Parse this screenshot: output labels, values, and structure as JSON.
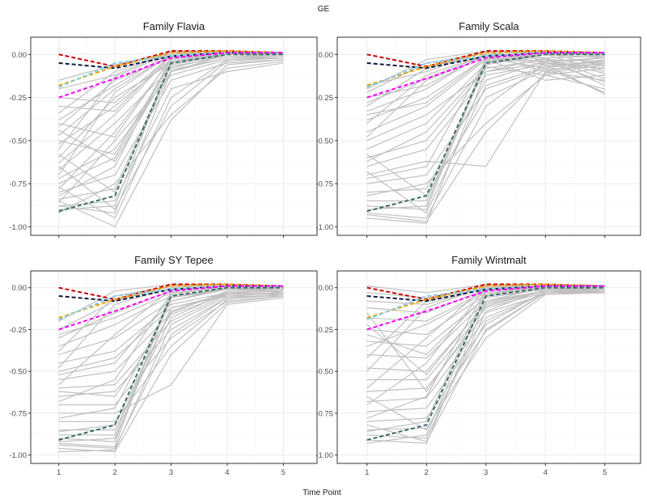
{
  "title": "GE",
  "xlabel": "Time Point",
  "chart_data": {
    "type": "line",
    "title": "GE",
    "xlabel": "Time Point",
    "ylabel": "",
    "x": [
      1,
      2,
      3,
      4,
      5
    ],
    "xlim": [
      0.5,
      5.6
    ],
    "ylim": [
      -1.05,
      0.1
    ],
    "y_ticks": [
      0.0,
      -0.25,
      -0.5,
      -0.75,
      -1.0
    ],
    "y_tick_labels": [
      "0.00",
      "-0.25",
      "-0.50",
      "-0.75",
      "-1.00"
    ],
    "x_ticks": [
      1,
      2,
      3,
      4,
      5
    ],
    "x_tick_labels": [
      "1",
      "2",
      "3",
      "4",
      "5"
    ],
    "grid": true,
    "background_color": "#c0c0c0",
    "dashed_series": [
      {
        "color": "#cc0000",
        "values": [
          0.0,
          -0.07,
          0.02,
          0.02,
          0.01
        ]
      },
      {
        "color": "#0d1b3e",
        "values": [
          -0.05,
          -0.08,
          -0.01,
          0.01,
          0.01
        ]
      },
      {
        "color": "#f0a000",
        "values": [
          -0.18,
          -0.07,
          0.01,
          0.02,
          0.01
        ]
      },
      {
        "color": "#87ceeb",
        "values": [
          -0.19,
          -0.05,
          -0.01,
          0.01,
          0.01
        ]
      },
      {
        "color": "#ff00ff",
        "values": [
          -0.25,
          -0.14,
          -0.02,
          0.01,
          0.01
        ]
      },
      {
        "color": "#3d6b6b",
        "values": [
          -0.91,
          -0.82,
          -0.05,
          0.0,
          0.0
        ]
      }
    ],
    "panels": [
      {
        "title": "Family Flavia",
        "background": [
          [
            -0.38,
            -0.18,
            0.01,
            0.01,
            0.0
          ],
          [
            -0.42,
            -0.15,
            -0.02,
            0.0,
            0.0
          ],
          [
            -0.47,
            -0.2,
            0.0,
            0.02,
            0.01
          ],
          [
            -0.52,
            -0.3,
            -0.03,
            0.01,
            0.0
          ],
          [
            -0.55,
            -0.13,
            0.01,
            0.01,
            0.01
          ],
          [
            -0.6,
            -0.25,
            -0.05,
            0.0,
            0.0
          ],
          [
            -0.63,
            -0.35,
            -0.01,
            0.01,
            0.0
          ],
          [
            -0.67,
            -0.4,
            -0.08,
            0.0,
            -0.01
          ],
          [
            -0.7,
            -0.22,
            0.0,
            0.02,
            0.01
          ],
          [
            -0.72,
            -0.55,
            -0.1,
            -0.02,
            -0.02
          ],
          [
            -0.75,
            -0.6,
            -0.05,
            0.0,
            0.0
          ],
          [
            -0.78,
            -0.45,
            -0.03,
            0.01,
            0.0
          ],
          [
            -0.8,
            -0.7,
            -0.15,
            -0.05,
            -0.03
          ],
          [
            -0.82,
            -0.65,
            -0.02,
            0.01,
            0.01
          ],
          [
            -0.84,
            -0.78,
            -0.06,
            0.0,
            0.0
          ],
          [
            -0.86,
            -0.5,
            -0.12,
            -0.03,
            -0.02
          ],
          [
            -0.88,
            -0.85,
            -0.2,
            -0.1,
            -0.05
          ],
          [
            -0.9,
            -0.88,
            -0.04,
            0.01,
            0.0
          ],
          [
            -0.92,
            -0.75,
            -0.35,
            -0.08,
            -0.04
          ],
          [
            -0.85,
            -1.0,
            -0.38,
            -0.06,
            -0.03
          ],
          [
            -0.2,
            -0.12,
            0.02,
            0.02,
            0.01
          ],
          [
            -0.25,
            -0.28,
            -0.01,
            0.01,
            0.01
          ],
          [
            -0.3,
            -0.33,
            0.0,
            0.01,
            0.0
          ],
          [
            -0.34,
            -0.1,
            0.01,
            0.02,
            0.01
          ],
          [
            -0.44,
            -0.62,
            -0.07,
            -0.01,
            -0.01
          ],
          [
            -0.58,
            -0.8,
            -0.09,
            -0.02,
            -0.01
          ],
          [
            -0.65,
            -0.9,
            -0.3,
            -0.04,
            -0.02
          ],
          [
            -0.77,
            -0.95,
            -0.25,
            -0.03,
            -0.02
          ],
          [
            -0.88,
            -0.92,
            -0.1,
            0.0,
            0.0
          ],
          [
            -0.5,
            -0.58,
            -0.04,
            0.0,
            0.0
          ],
          [
            -0.4,
            -0.48,
            -0.02,
            0.01,
            0.0
          ],
          [
            -0.15,
            -0.06,
            0.01,
            0.02,
            0.01
          ]
        ]
      },
      {
        "title": "Family Scala",
        "background": [
          [
            -0.18,
            -0.1,
            0.02,
            0.02,
            0.01
          ],
          [
            -0.22,
            -0.05,
            0.01,
            -0.05,
            -0.08
          ],
          [
            -0.28,
            -0.14,
            0.0,
            -0.1,
            -0.15
          ],
          [
            -0.33,
            -0.2,
            0.01,
            -0.02,
            -0.18
          ],
          [
            -0.38,
            -0.25,
            -0.02,
            -0.08,
            -0.22
          ],
          [
            -0.45,
            -0.3,
            -0.03,
            -0.15,
            -0.12
          ],
          [
            -0.5,
            -0.35,
            -0.1,
            -0.05,
            -0.05
          ],
          [
            -0.55,
            -0.4,
            -0.05,
            0.0,
            -0.02
          ],
          [
            -0.6,
            -0.5,
            -0.08,
            -0.03,
            -0.04
          ],
          [
            -0.65,
            -0.55,
            -0.12,
            -0.06,
            -0.06
          ],
          [
            -0.7,
            -0.62,
            -0.65,
            -0.1,
            -0.05
          ],
          [
            -0.75,
            -0.7,
            -0.2,
            -0.08,
            -0.03
          ],
          [
            -0.8,
            -0.78,
            -0.15,
            -0.04,
            -0.02
          ],
          [
            -0.85,
            -0.85,
            -0.06,
            0.0,
            0.0
          ],
          [
            -0.88,
            -0.9,
            -0.04,
            0.01,
            0.0
          ],
          [
            -0.92,
            -0.95,
            -0.3,
            -0.05,
            -0.02
          ],
          [
            -0.95,
            -0.98,
            -0.1,
            -0.02,
            -0.01
          ],
          [
            -0.9,
            -0.88,
            -0.02,
            0.01,
            0.01
          ],
          [
            -0.82,
            -0.75,
            -0.4,
            -0.12,
            -0.08
          ],
          [
            -0.72,
            -0.65,
            -0.03,
            0.0,
            -0.1
          ],
          [
            -0.62,
            -0.45,
            -0.07,
            -0.12,
            -0.2
          ],
          [
            -0.48,
            -0.15,
            -0.01,
            -0.06,
            -0.23
          ],
          [
            -0.4,
            -0.12,
            0.0,
            -0.02,
            -0.14
          ],
          [
            -0.3,
            -0.08,
            0.01,
            0.01,
            -0.07
          ],
          [
            -0.25,
            -0.18,
            0.0,
            -0.03,
            -0.11
          ],
          [
            -0.58,
            -0.82,
            -0.25,
            -0.09,
            -0.05
          ],
          [
            -0.68,
            -0.92,
            -0.18,
            -0.07,
            -0.04
          ],
          [
            -0.93,
            -0.97,
            -0.45,
            -0.11,
            -0.06
          ],
          [
            -0.35,
            -0.28,
            -0.02,
            -0.04,
            -0.16
          ],
          [
            -0.2,
            -0.03,
            0.02,
            0.01,
            -0.01
          ]
        ]
      },
      {
        "title": "Family SY Tepee",
        "background": [
          [
            -0.2,
            -0.02,
            0.02,
            0.02,
            0.01
          ],
          [
            -0.25,
            -0.08,
            0.01,
            0.02,
            0.01
          ],
          [
            -0.3,
            -0.15,
            -0.02,
            0.01,
            0.0
          ],
          [
            -0.35,
            -0.22,
            -0.05,
            -0.01,
            -0.02
          ],
          [
            -0.4,
            -0.3,
            -0.08,
            0.0,
            -0.03
          ],
          [
            -0.45,
            -0.38,
            -0.1,
            -0.03,
            -0.04
          ],
          [
            -0.5,
            -0.42,
            -0.12,
            -0.05,
            -0.05
          ],
          [
            -0.55,
            -0.5,
            -0.15,
            -0.02,
            -0.02
          ],
          [
            -0.6,
            -0.58,
            -0.2,
            -0.04,
            -0.03
          ],
          [
            -0.65,
            -0.62,
            -0.25,
            -0.06,
            -0.04
          ],
          [
            -0.7,
            -0.7,
            -0.3,
            -0.08,
            -0.05
          ],
          [
            -0.75,
            -0.75,
            -0.58,
            -0.1,
            -0.06
          ],
          [
            -0.8,
            -0.8,
            -0.35,
            -0.07,
            -0.04
          ],
          [
            -0.85,
            -0.85,
            -0.18,
            -0.03,
            -0.02
          ],
          [
            -0.88,
            -0.88,
            -0.06,
            0.0,
            0.0
          ],
          [
            -0.9,
            -0.92,
            -0.04,
            0.01,
            0.0
          ],
          [
            -0.93,
            -0.95,
            -0.02,
            0.01,
            0.01
          ],
          [
            -0.96,
            -0.98,
            -0.4,
            -0.09,
            -0.05
          ],
          [
            -0.98,
            -0.97,
            -0.22,
            -0.05,
            -0.03
          ],
          [
            -0.86,
            -0.82,
            -0.14,
            -0.03,
            -0.02
          ],
          [
            -0.78,
            -0.72,
            -0.08,
            -0.01,
            -0.01
          ],
          [
            -0.68,
            -0.55,
            -0.03,
            0.0,
            0.0
          ],
          [
            -0.58,
            -0.28,
            -0.01,
            0.01,
            0.0
          ],
          [
            -0.48,
            -0.1,
            0.0,
            0.02,
            0.01
          ],
          [
            -0.38,
            -0.05,
            0.01,
            0.02,
            0.01
          ],
          [
            -0.28,
            -0.18,
            -0.03,
            0.0,
            -0.01
          ],
          [
            -0.92,
            -0.9,
            -0.12,
            -0.04,
            -0.03
          ],
          [
            -0.94,
            -0.96,
            -0.28,
            -0.06,
            -0.04
          ],
          [
            -0.62,
            -0.65,
            -0.16,
            -0.04,
            -0.03
          ],
          [
            -0.52,
            -0.45,
            -0.06,
            -0.01,
            -0.01
          ]
        ]
      },
      {
        "title": "Family Wintmalt",
        "background": [
          [
            0.01,
            -0.03,
            0.02,
            0.02,
            0.01
          ],
          [
            -0.03,
            -0.06,
            0.01,
            0.02,
            0.01
          ],
          [
            -0.08,
            -0.1,
            0.0,
            0.01,
            0.0
          ],
          [
            -0.12,
            -0.15,
            -0.01,
            0.01,
            0.0
          ],
          [
            -0.18,
            -0.2,
            -0.02,
            0.0,
            -0.01
          ],
          [
            -0.25,
            -0.28,
            -0.04,
            0.0,
            -0.02
          ],
          [
            -0.32,
            -0.35,
            -0.06,
            -0.01,
            -0.02
          ],
          [
            -0.4,
            -0.42,
            -0.08,
            -0.02,
            -0.03
          ],
          [
            -0.48,
            -0.5,
            -0.1,
            -0.02,
            -0.02
          ],
          [
            -0.55,
            -0.55,
            -0.12,
            -0.03,
            -0.03
          ],
          [
            -0.62,
            -0.6,
            -0.15,
            -0.04,
            -0.03
          ],
          [
            -0.68,
            -0.66,
            -0.18,
            -0.03,
            -0.02
          ],
          [
            -0.74,
            -0.72,
            -0.22,
            -0.02,
            -0.02
          ],
          [
            -0.8,
            -0.78,
            -0.26,
            -0.03,
            -0.02
          ],
          [
            -0.85,
            -0.84,
            -0.3,
            -0.04,
            -0.03
          ],
          [
            -0.88,
            -0.9,
            -0.14,
            -0.01,
            -0.01
          ],
          [
            -0.91,
            -0.93,
            -0.08,
            0.0,
            0.0
          ],
          [
            -0.93,
            -0.88,
            -0.04,
            0.01,
            0.0
          ],
          [
            -0.86,
            -0.8,
            -0.02,
            0.01,
            0.01
          ],
          [
            -0.78,
            -0.65,
            -0.01,
            0.01,
            0.0
          ],
          [
            -0.7,
            -0.45,
            0.0,
            0.02,
            0.01
          ],
          [
            -0.6,
            -0.3,
            0.01,
            0.02,
            0.01
          ],
          [
            -0.5,
            -0.12,
            0.01,
            0.02,
            0.01
          ],
          [
            -0.42,
            -0.08,
            0.0,
            0.01,
            0.0
          ],
          [
            -0.35,
            -0.22,
            -0.03,
            0.0,
            -0.01
          ],
          [
            -0.28,
            -0.4,
            -0.05,
            -0.01,
            -0.02
          ],
          [
            -0.22,
            -0.52,
            -0.09,
            -0.02,
            -0.03
          ],
          [
            -0.15,
            -0.62,
            -0.11,
            -0.02,
            -0.02
          ],
          [
            -0.65,
            -0.85,
            -0.2,
            -0.03,
            -0.02
          ],
          [
            -0.82,
            -0.92,
            -0.25,
            -0.03,
            -0.02
          ]
        ]
      }
    ]
  }
}
